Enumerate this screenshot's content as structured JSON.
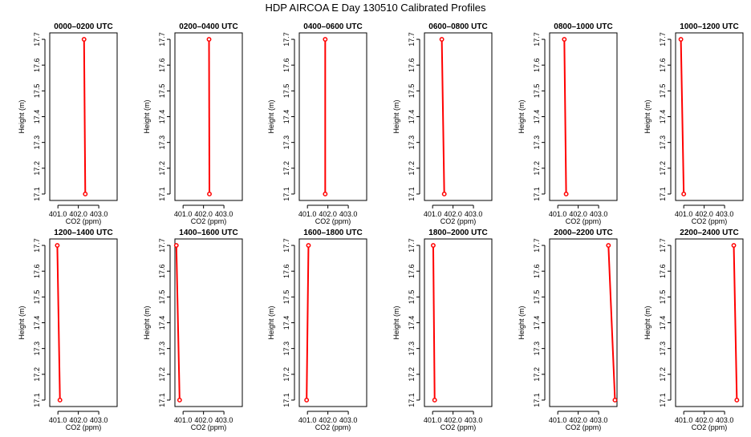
{
  "figure": {
    "title": "HDP AIRCOA E  Day 130510  Calibrated Profiles"
  },
  "colors": {
    "series": "#ff0000",
    "axes": "#000000"
  },
  "chart_data": {
    "type": "line",
    "xlabel": "CO2 (ppm)",
    "ylabel": "Height (m)",
    "xlim": [
      400.6,
      403.9
    ],
    "ylim": [
      17.075,
      17.725
    ],
    "x_ticks": [
      "401.0",
      "402.0",
      "403.0"
    ],
    "x_tick_values": [
      401.0,
      402.0,
      403.0
    ],
    "y_ticks": [
      "17.1",
      "17.2",
      "17.3",
      "17.4",
      "17.5",
      "17.6",
      "17.7"
    ],
    "y_tick_values": [
      17.1,
      17.2,
      17.3,
      17.4,
      17.5,
      17.6,
      17.7
    ],
    "grid": false,
    "panels": [
      {
        "title": "0000–0200 UTC",
        "points": [
          {
            "x": 402.28,
            "y": 17.7
          },
          {
            "x": 402.34,
            "y": 17.1
          }
        ]
      },
      {
        "title": "0200–0400 UTC",
        "points": [
          {
            "x": 402.27,
            "y": 17.7
          },
          {
            "x": 402.29,
            "y": 17.1
          }
        ]
      },
      {
        "title": "0400–0600 UTC",
        "points": [
          {
            "x": 401.87,
            "y": 17.7
          },
          {
            "x": 401.87,
            "y": 17.1
          }
        ]
      },
      {
        "title": "0600–0800 UTC",
        "points": [
          {
            "x": 401.45,
            "y": 17.7
          },
          {
            "x": 401.57,
            "y": 17.1
          }
        ]
      },
      {
        "title": "0800–1000 UTC",
        "points": [
          {
            "x": 401.32,
            "y": 17.7
          },
          {
            "x": 401.41,
            "y": 17.1
          }
        ]
      },
      {
        "title": "1000–1200 UTC",
        "points": [
          {
            "x": 400.86,
            "y": 17.7
          },
          {
            "x": 401.0,
            "y": 17.1
          }
        ]
      },
      {
        "title": "1200–1400 UTC",
        "points": [
          {
            "x": 400.97,
            "y": 17.7
          },
          {
            "x": 401.1,
            "y": 17.1
          }
        ]
      },
      {
        "title": "1400–1600 UTC",
        "points": [
          {
            "x": 400.67,
            "y": 17.7
          },
          {
            "x": 400.83,
            "y": 17.1
          }
        ]
      },
      {
        "title": "1600–1800 UTC",
        "points": [
          {
            "x": 401.05,
            "y": 17.7
          },
          {
            "x": 400.96,
            "y": 17.1
          }
        ]
      },
      {
        "title": "1800–2000 UTC",
        "points": [
          {
            "x": 401.03,
            "y": 17.7
          },
          {
            "x": 401.1,
            "y": 17.1
          }
        ]
      },
      {
        "title": "2000–2200 UTC",
        "points": [
          {
            "x": 403.48,
            "y": 17.7
          },
          {
            "x": 403.8,
            "y": 17.1
          }
        ]
      },
      {
        "title": "2200–2400 UTC",
        "points": [
          {
            "x": 403.45,
            "y": 17.7
          },
          {
            "x": 403.6,
            "y": 17.1
          }
        ]
      }
    ]
  }
}
